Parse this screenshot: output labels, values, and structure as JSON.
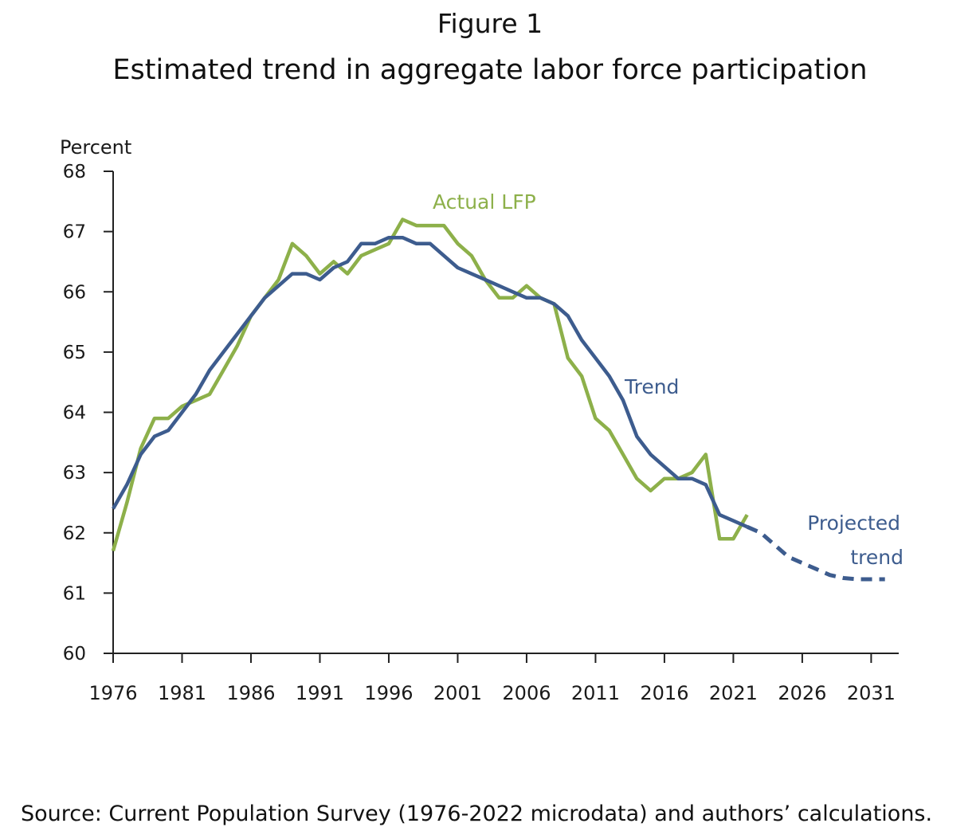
{
  "figure_label": "Figure 1",
  "title": "Estimated trend in aggregate labor force participation",
  "source": "Source: Current Population Survey (1976-2022 microdata) and authors’ calculations.",
  "colors": {
    "actual": "#8db04a",
    "trend": "#3d5c8e",
    "axis": "#222222",
    "text": "#1a1a1a"
  },
  "chart_data": {
    "type": "line",
    "ylabel": "Percent",
    "xlabel": "",
    "xlim": [
      1976,
      2033
    ],
    "ylim": [
      60,
      68
    ],
    "x_ticks": [
      1976,
      1981,
      1986,
      1991,
      1996,
      2001,
      2006,
      2011,
      2016,
      2021,
      2026,
      2031
    ],
    "y_ticks": [
      60,
      61,
      62,
      63,
      64,
      65,
      66,
      67,
      68
    ],
    "grid": false,
    "legend": "inline labels",
    "series": [
      {
        "name": "Actual LFP",
        "style": "solid",
        "x": [
          1976,
          1977,
          1978,
          1979,
          1980,
          1981,
          1982,
          1983,
          1984,
          1985,
          1986,
          1987,
          1988,
          1989,
          1990,
          1991,
          1992,
          1993,
          1994,
          1995,
          1996,
          1997,
          1998,
          1999,
          2000,
          2001,
          2002,
          2003,
          2004,
          2005,
          2006,
          2007,
          2008,
          2009,
          2010,
          2011,
          2012,
          2013,
          2014,
          2015,
          2016,
          2017,
          2018,
          2019,
          2020,
          2021,
          2022
        ],
        "values": [
          61.7,
          62.5,
          63.4,
          63.9,
          63.9,
          64.1,
          64.2,
          64.3,
          64.7,
          65.1,
          65.6,
          65.9,
          66.2,
          66.8,
          66.6,
          66.3,
          66.5,
          66.3,
          66.6,
          66.7,
          66.8,
          67.2,
          67.1,
          67.1,
          67.1,
          66.8,
          66.6,
          66.2,
          65.9,
          65.9,
          66.1,
          65.9,
          65.8,
          64.9,
          64.6,
          63.9,
          63.7,
          63.3,
          62.9,
          62.7,
          62.9,
          62.9,
          63.0,
          63.3,
          61.9,
          61.9,
          62.3
        ]
      },
      {
        "name": "Trend",
        "style": "solid",
        "x": [
          1976,
          1977,
          1978,
          1979,
          1980,
          1981,
          1982,
          1983,
          1984,
          1985,
          1986,
          1987,
          1988,
          1989,
          1990,
          1991,
          1992,
          1993,
          1994,
          1995,
          1996,
          1997,
          1998,
          1999,
          2000,
          2001,
          2002,
          2003,
          2004,
          2005,
          2006,
          2007,
          2008,
          2009,
          2010,
          2011,
          2012,
          2013,
          2014,
          2015,
          2016,
          2017,
          2018,
          2019,
          2020,
          2021,
          2022
        ],
        "values": [
          62.4,
          62.8,
          63.3,
          63.6,
          63.7,
          64.0,
          64.3,
          64.7,
          65.0,
          65.3,
          65.6,
          65.9,
          66.1,
          66.3,
          66.3,
          66.2,
          66.4,
          66.5,
          66.8,
          66.8,
          66.9,
          66.9,
          66.8,
          66.8,
          66.6,
          66.4,
          66.3,
          66.2,
          66.1,
          66.0,
          65.9,
          65.9,
          65.8,
          65.6,
          65.2,
          64.9,
          64.6,
          64.2,
          63.6,
          63.3,
          63.1,
          62.9,
          62.9,
          62.8,
          62.3,
          62.2,
          62.1
        ]
      },
      {
        "name": "Projected trend",
        "style": "dashed",
        "x": [
          2022,
          2023,
          2024,
          2025,
          2026,
          2027,
          2028,
          2029,
          2030,
          2031,
          2032
        ],
        "values": [
          62.1,
          62.0,
          61.8,
          61.6,
          61.5,
          61.4,
          61.3,
          61.25,
          61.23,
          61.23,
          61.23
        ]
      }
    ],
    "annotations": [
      {
        "series": "Actual LFP",
        "text": "Actual LFP"
      },
      {
        "series": "Trend",
        "text": "Trend"
      },
      {
        "series": "Projected trend",
        "text": "Projected",
        "text2": "trend"
      }
    ]
  }
}
